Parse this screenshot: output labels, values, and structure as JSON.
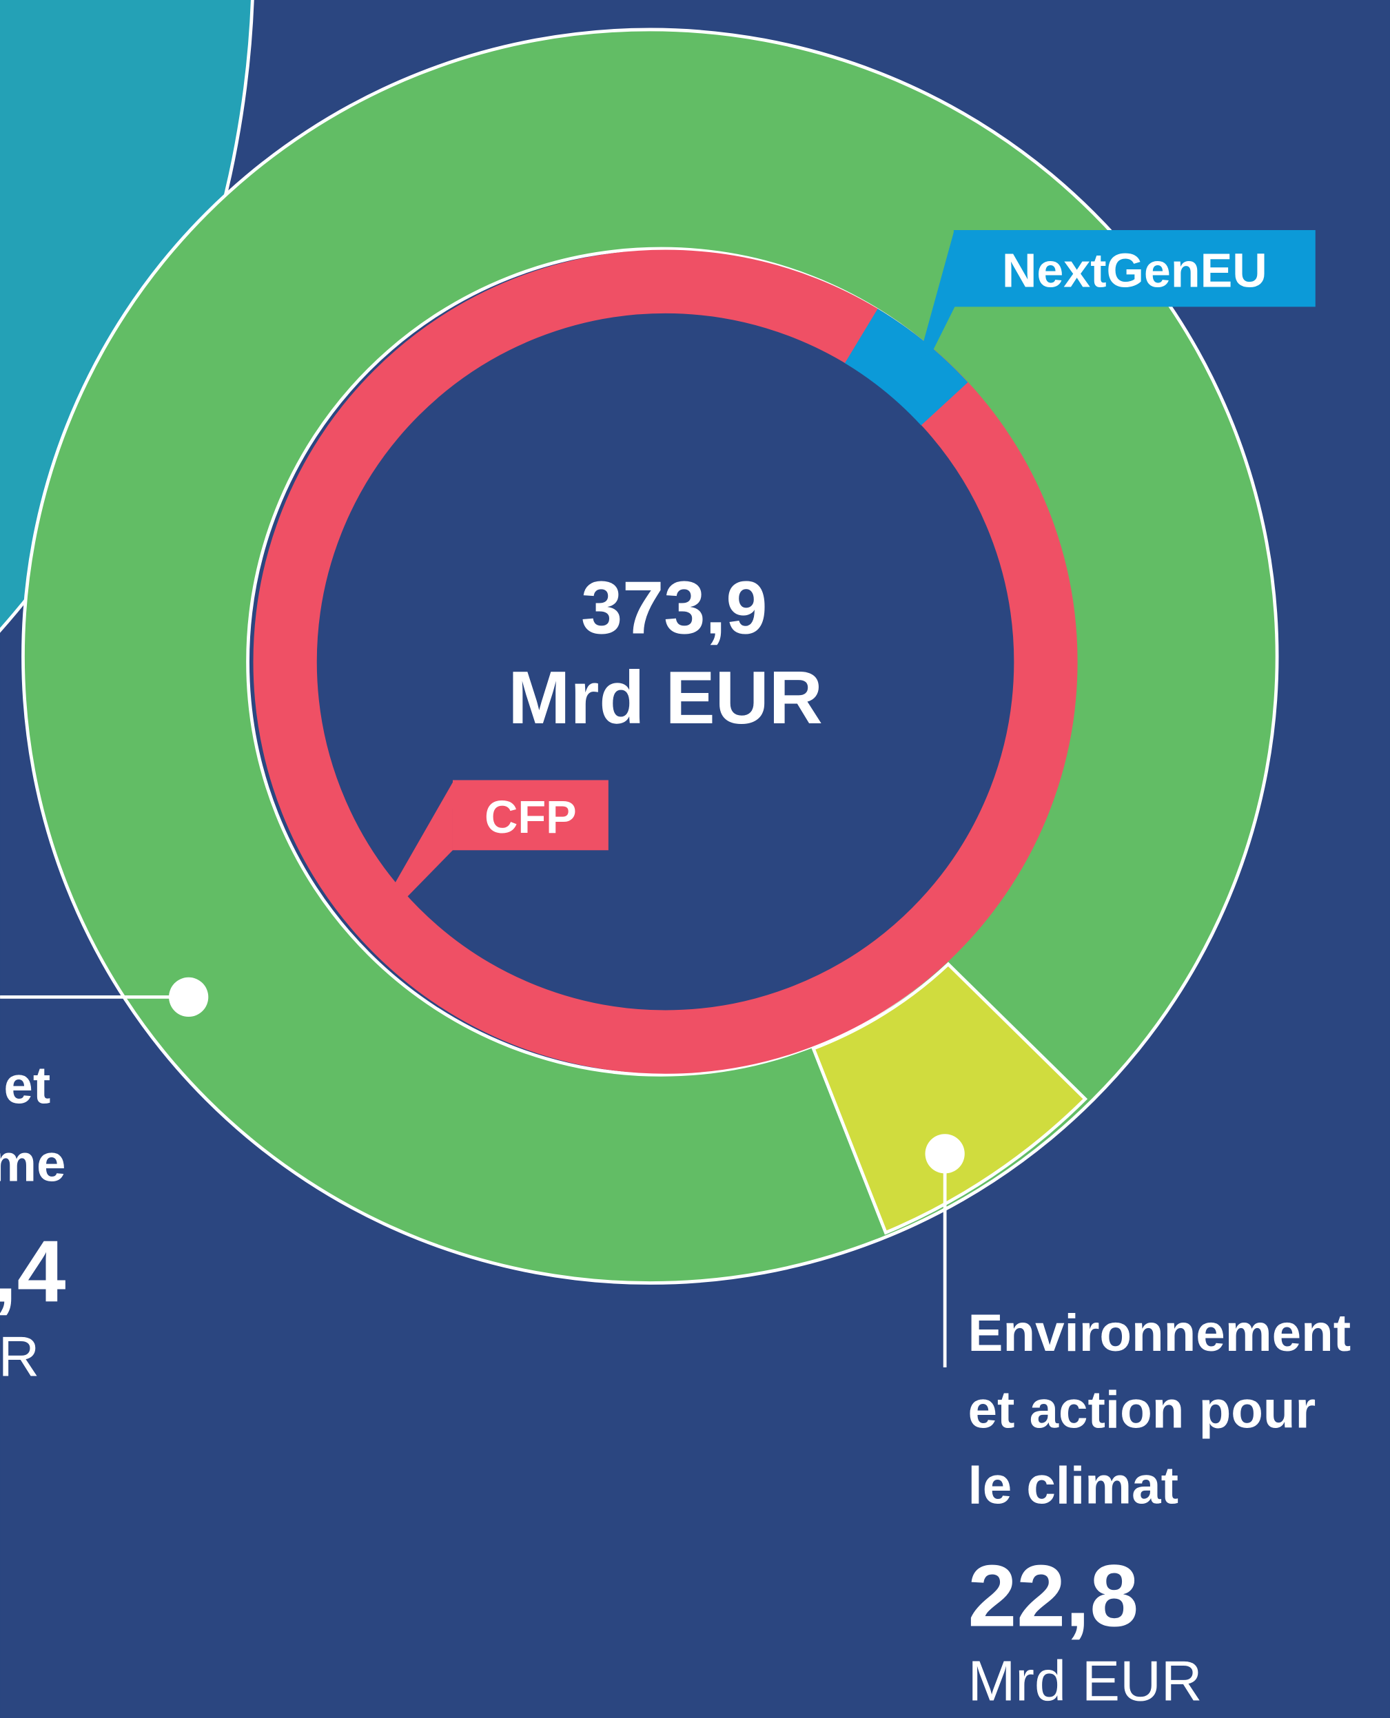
{
  "center": {
    "value": "373,9",
    "unit": "Mrd EUR"
  },
  "labels": {
    "nextgeneu": "NextGenEU",
    "cfp": "CFP"
  },
  "callouts": [
    {
      "lines": [
        "et",
        "me"
      ],
      "value": ",4",
      "unit": "R"
    },
    {
      "lines": [
        "Environnement",
        "et action pour",
        "le climat"
      ],
      "value": "22,8",
      "unit": "Mrd EUR"
    }
  ]
}
